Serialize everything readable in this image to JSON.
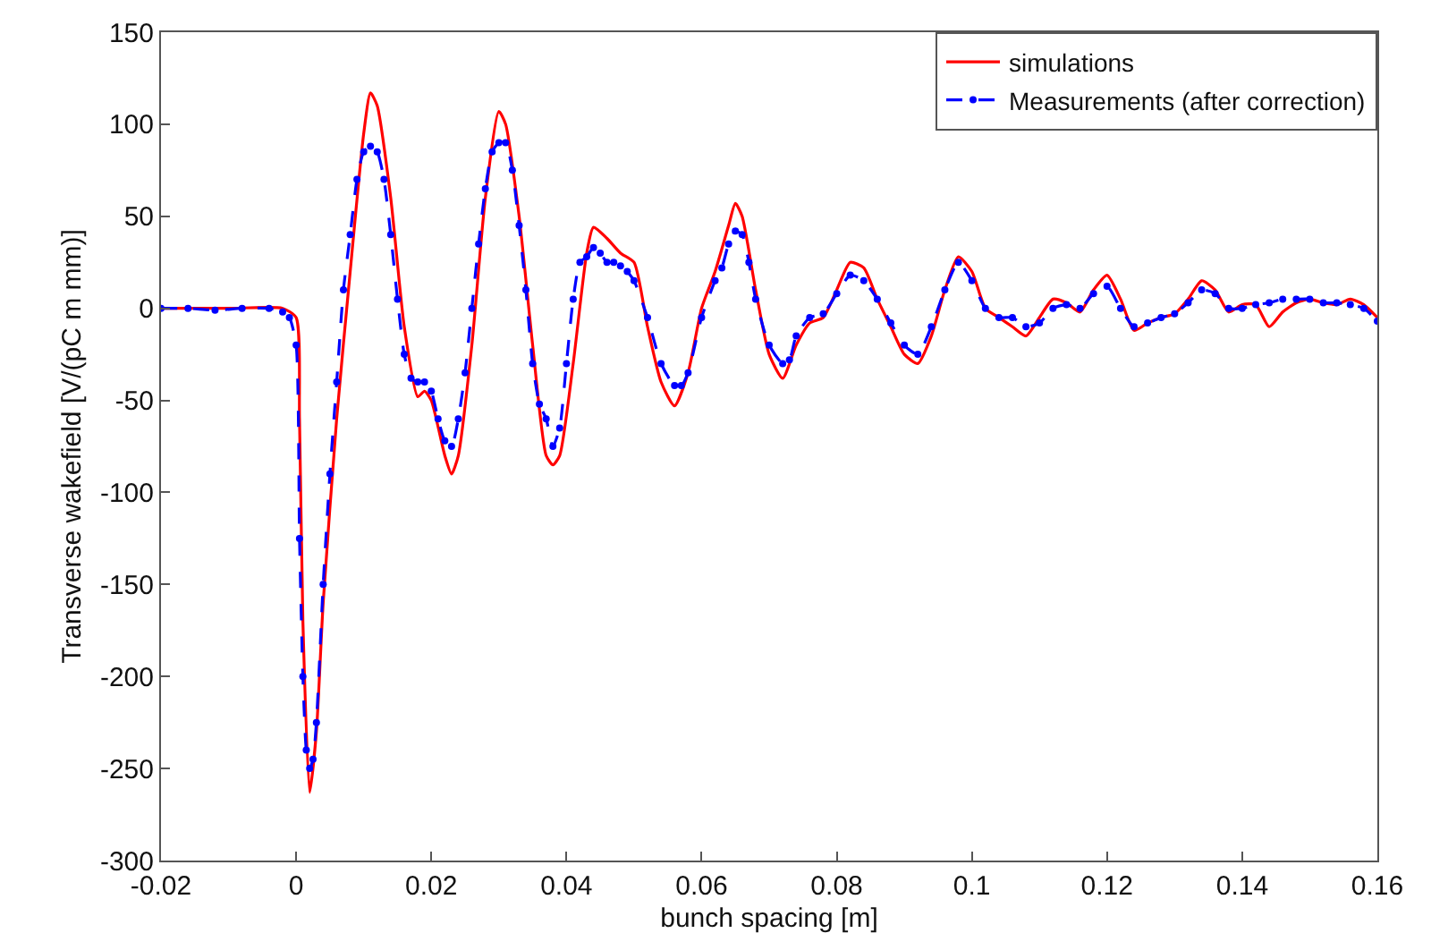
{
  "chart_data": {
    "type": "line",
    "xlabel": "bunch spacing [m]",
    "ylabel": "Transverse wakefield [V/(pC m mm)]",
    "xlim": [
      -0.02,
      0.16
    ],
    "xticks": [
      -0.02,
      0,
      0.02,
      0.04,
      0.06,
      0.08,
      0.1,
      0.12,
      0.14,
      0.16
    ],
    "ylim": [
      -300,
      150
    ],
    "yticks": [
      -300,
      -250,
      -200,
      -150,
      -100,
      -50,
      0,
      50,
      100,
      150
    ],
    "legend": "top right",
    "series": [
      {
        "name": "simulations",
        "color": "#ff0000",
        "line_style": "solid",
        "marker": "none",
        "x": [
          -0.02,
          -0.01,
          -0.002,
          0,
          0.0005,
          0.001,
          0.002,
          0.003,
          0.004,
          0.006,
          0.008,
          0.01,
          0.011,
          0.012,
          0.014,
          0.016,
          0.018,
          0.019,
          0.02,
          0.022,
          0.023,
          0.024,
          0.026,
          0.028,
          0.03,
          0.031,
          0.033,
          0.035,
          0.037,
          0.038,
          0.039,
          0.041,
          0.043,
          0.044,
          0.046,
          0.048,
          0.05,
          0.052,
          0.054,
          0.056,
          0.058,
          0.06,
          0.062,
          0.064,
          0.065,
          0.066,
          0.068,
          0.07,
          0.072,
          0.074,
          0.076,
          0.078,
          0.08,
          0.082,
          0.084,
          0.086,
          0.088,
          0.09,
          0.092,
          0.094,
          0.096,
          0.098,
          0.1,
          0.102,
          0.104,
          0.106,
          0.108,
          0.11,
          0.112,
          0.114,
          0.116,
          0.118,
          0.12,
          0.122,
          0.124,
          0.126,
          0.128,
          0.13,
          0.132,
          0.134,
          0.136,
          0.138,
          0.14,
          0.142,
          0.144,
          0.146,
          0.148,
          0.15,
          0.152,
          0.154,
          0.156,
          0.158,
          0.16
        ],
        "values": [
          0,
          0,
          0,
          -5,
          -60,
          -170,
          -263,
          -230,
          -160,
          -60,
          20,
          95,
          117,
          110,
          60,
          -10,
          -48,
          -45,
          -50,
          -80,
          -90,
          -80,
          -20,
          60,
          107,
          100,
          50,
          -20,
          -80,
          -85,
          -80,
          -30,
          30,
          44,
          38,
          30,
          25,
          -10,
          -40,
          -53,
          -35,
          0,
          20,
          45,
          57,
          50,
          10,
          -25,
          -38,
          -20,
          -8,
          -5,
          10,
          25,
          22,
          5,
          -10,
          -25,
          -30,
          -15,
          10,
          28,
          20,
          0,
          -5,
          -10,
          -15,
          -5,
          5,
          3,
          -2,
          10,
          18,
          5,
          -12,
          -8,
          -5,
          -3,
          5,
          15,
          10,
          -2,
          2,
          2,
          -10,
          -2,
          3,
          5,
          3,
          2,
          5,
          2,
          -5
        ]
      },
      {
        "name": "Measurements (after correction)",
        "color": "#0000ff",
        "line_style": "dashed",
        "marker": "circle",
        "x": [
          -0.02,
          -0.016,
          -0.012,
          -0.008,
          -0.004,
          -0.002,
          -0.001,
          0,
          0.0005,
          0.001,
          0.0015,
          0.002,
          0.0025,
          0.003,
          0.004,
          0.005,
          0.006,
          0.007,
          0.008,
          0.009,
          0.01,
          0.011,
          0.012,
          0.013,
          0.014,
          0.015,
          0.016,
          0.017,
          0.018,
          0.019,
          0.02,
          0.021,
          0.022,
          0.023,
          0.024,
          0.025,
          0.026,
          0.027,
          0.028,
          0.029,
          0.03,
          0.031,
          0.032,
          0.033,
          0.034,
          0.035,
          0.036,
          0.037,
          0.038,
          0.039,
          0.04,
          0.041,
          0.042,
          0.043,
          0.044,
          0.045,
          0.046,
          0.047,
          0.048,
          0.049,
          0.05,
          0.052,
          0.054,
          0.056,
          0.057,
          0.058,
          0.06,
          0.062,
          0.063,
          0.064,
          0.065,
          0.066,
          0.067,
          0.068,
          0.07,
          0.072,
          0.073,
          0.074,
          0.076,
          0.078,
          0.08,
          0.082,
          0.084,
          0.086,
          0.088,
          0.09,
          0.092,
          0.094,
          0.096,
          0.098,
          0.1,
          0.102,
          0.104,
          0.106,
          0.108,
          0.11,
          0.112,
          0.114,
          0.116,
          0.118,
          0.12,
          0.122,
          0.124,
          0.126,
          0.128,
          0.13,
          0.132,
          0.134,
          0.136,
          0.138,
          0.14,
          0.142,
          0.144,
          0.146,
          0.148,
          0.15,
          0.152,
          0.154,
          0.156,
          0.158,
          0.16
        ],
        "values": [
          0,
          0,
          -1,
          0,
          0,
          -2,
          -5,
          -20,
          -125,
          -200,
          -240,
          -250,
          -245,
          -225,
          -150,
          -90,
          -40,
          10,
          40,
          70,
          85,
          88,
          85,
          70,
          40,
          5,
          -25,
          -38,
          -40,
          -40,
          -45,
          -60,
          -72,
          -75,
          -60,
          -35,
          0,
          35,
          65,
          85,
          90,
          90,
          75,
          45,
          10,
          -30,
          -52,
          -60,
          -75,
          -65,
          -30,
          5,
          25,
          28,
          33,
          30,
          25,
          25,
          23,
          20,
          15,
          -5,
          -30,
          -42,
          -42,
          -35,
          -5,
          15,
          22,
          35,
          42,
          40,
          25,
          5,
          -20,
          -30,
          -28,
          -15,
          -5,
          -3,
          8,
          18,
          15,
          5,
          -8,
          -20,
          -25,
          -10,
          10,
          25,
          15,
          0,
          -5,
          -5,
          -10,
          -8,
          0,
          2,
          0,
          8,
          12,
          0,
          -10,
          -8,
          -5,
          -3,
          3,
          10,
          8,
          0,
          0,
          2,
          3,
          5,
          5,
          5,
          3,
          3,
          2,
          0,
          -7
        ]
      }
    ]
  }
}
